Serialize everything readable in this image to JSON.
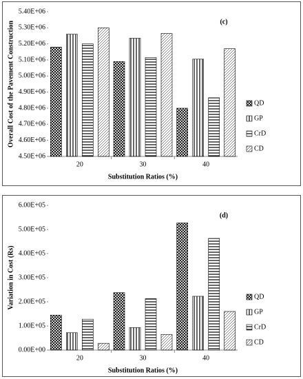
{
  "chart_data": [
    {
      "type": "bar",
      "annotation": "(c)",
      "y_label": "Overall Cost of the Pavement Construction",
      "x_label": "Substitution Ratios (%)",
      "categories": [
        "20",
        "30",
        "40"
      ],
      "series": [
        {
          "name": "QD",
          "color": "#000000",
          "hatch": "cross",
          "values": [
            5180000,
            5090000,
            4800000
          ]
        },
        {
          "name": "GP",
          "color": "#000000",
          "hatch": "vertical",
          "values": [
            5260000,
            5235000,
            5105000
          ]
        },
        {
          "name": "CrD",
          "color": "#000000",
          "hatch": "horizontal",
          "values": [
            5200000,
            5115000,
            4865000
          ]
        },
        {
          "name": "CD",
          "color": "#000000",
          "hatch": "diagonal",
          "values": [
            5300000,
            5265000,
            5170000
          ]
        }
      ],
      "ylim": [
        4500000,
        5400000
      ],
      "yticks": [
        {
          "value": 4500000,
          "label": "4.50E+06"
        },
        {
          "value": 4600000,
          "label": "4.60E+06"
        },
        {
          "value": 4700000,
          "label": "4.70E+06"
        },
        {
          "value": 4800000,
          "label": "4.80E+06"
        },
        {
          "value": 4900000,
          "label": "4.90E+06"
        },
        {
          "value": 5000000,
          "label": "5.00E+06"
        },
        {
          "value": 5100000,
          "label": "5.10E+06"
        },
        {
          "value": 5200000,
          "label": "5.20E+06"
        },
        {
          "value": 5300000,
          "label": "5.30E+06"
        },
        {
          "value": 5400000,
          "label": "5.40E+06"
        }
      ],
      "grid": false,
      "legend": "right"
    },
    {
      "type": "bar",
      "annotation": "(d)",
      "y_label": "Variation in Cost (Rs)",
      "x_label": "Substitution Ratios (%)",
      "categories": [
        "20",
        "30",
        "40"
      ],
      "series": [
        {
          "name": "QD",
          "color": "#000000",
          "hatch": "cross",
          "values": [
            145000,
            238000,
            527000
          ]
        },
        {
          "name": "GP",
          "color": "#000000",
          "hatch": "vertical",
          "values": [
            72000,
            93000,
            223000
          ]
        },
        {
          "name": "CrD",
          "color": "#000000",
          "hatch": "horizontal",
          "values": [
            128000,
            213000,
            463000
          ]
        },
        {
          "name": "CD",
          "color": "#000000",
          "hatch": "diagonal",
          "values": [
            28000,
            65000,
            160000
          ]
        }
      ],
      "ylim": [
        0,
        600000
      ],
      "yticks": [
        {
          "value": 0,
          "label": "0.00E+00"
        },
        {
          "value": 100000,
          "label": "1.00E+05"
        },
        {
          "value": 200000,
          "label": "2.00E+05"
        },
        {
          "value": 300000,
          "label": "3.00E+05"
        },
        {
          "value": 400000,
          "label": "4.00E+05"
        },
        {
          "value": 500000,
          "label": "5.00E+05"
        },
        {
          "value": 600000,
          "label": "6.00E+05"
        }
      ],
      "grid": false,
      "legend": "right"
    }
  ]
}
